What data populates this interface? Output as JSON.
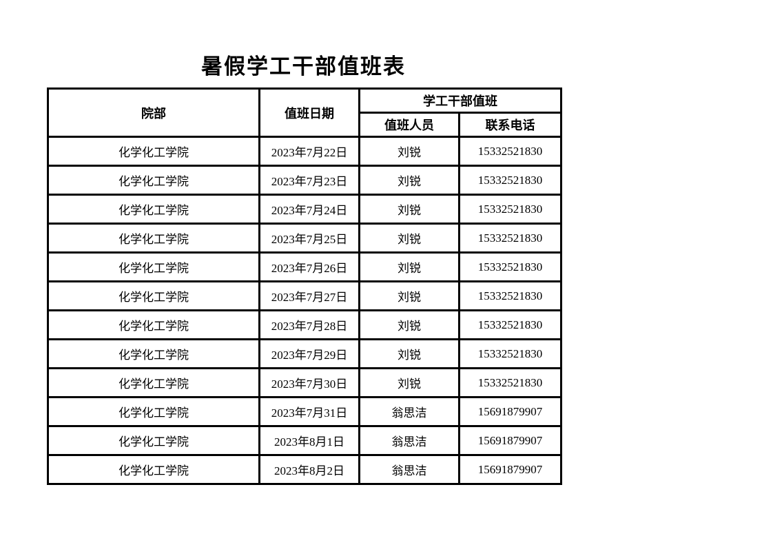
{
  "page": {
    "title": "暑假学工干部值班表"
  },
  "table": {
    "headers": {
      "department": "院部",
      "date": "值班日期",
      "duty_group": "学工干部值班",
      "person": "值班人员",
      "phone": "联系电话"
    },
    "rows": [
      {
        "department": "化学化工学院",
        "date": "2023年7月22日",
        "person": "刘锐",
        "phone": "15332521830"
      },
      {
        "department": "化学化工学院",
        "date": "2023年7月23日",
        "person": "刘锐",
        "phone": "15332521830"
      },
      {
        "department": "化学化工学院",
        "date": "2023年7月24日",
        "person": "刘锐",
        "phone": "15332521830"
      },
      {
        "department": "化学化工学院",
        "date": "2023年7月25日",
        "person": "刘锐",
        "phone": "15332521830"
      },
      {
        "department": "化学化工学院",
        "date": "2023年7月26日",
        "person": "刘锐",
        "phone": "15332521830"
      },
      {
        "department": "化学化工学院",
        "date": "2023年7月27日",
        "person": "刘锐",
        "phone": "15332521830"
      },
      {
        "department": "化学化工学院",
        "date": "2023年7月28日",
        "person": "刘锐",
        "phone": "15332521830"
      },
      {
        "department": "化学化工学院",
        "date": "2023年7月29日",
        "person": "刘锐",
        "phone": "15332521830"
      },
      {
        "department": "化学化工学院",
        "date": "2023年7月30日",
        "person": "刘锐",
        "phone": "15332521830"
      },
      {
        "department": "化学化工学院",
        "date": "2023年7月31日",
        "person": "翁思洁",
        "phone": "15691879907"
      },
      {
        "department": "化学化工学院",
        "date": "2023年8月1日",
        "person": "翁思洁",
        "phone": "15691879907"
      },
      {
        "department": "化学化工学院",
        "date": "2023年8月2日",
        "person": "翁思洁",
        "phone": "15691879907"
      }
    ]
  },
  "colors": {
    "border": "#000000",
    "background": "#ffffff",
    "text": "#000000"
  }
}
